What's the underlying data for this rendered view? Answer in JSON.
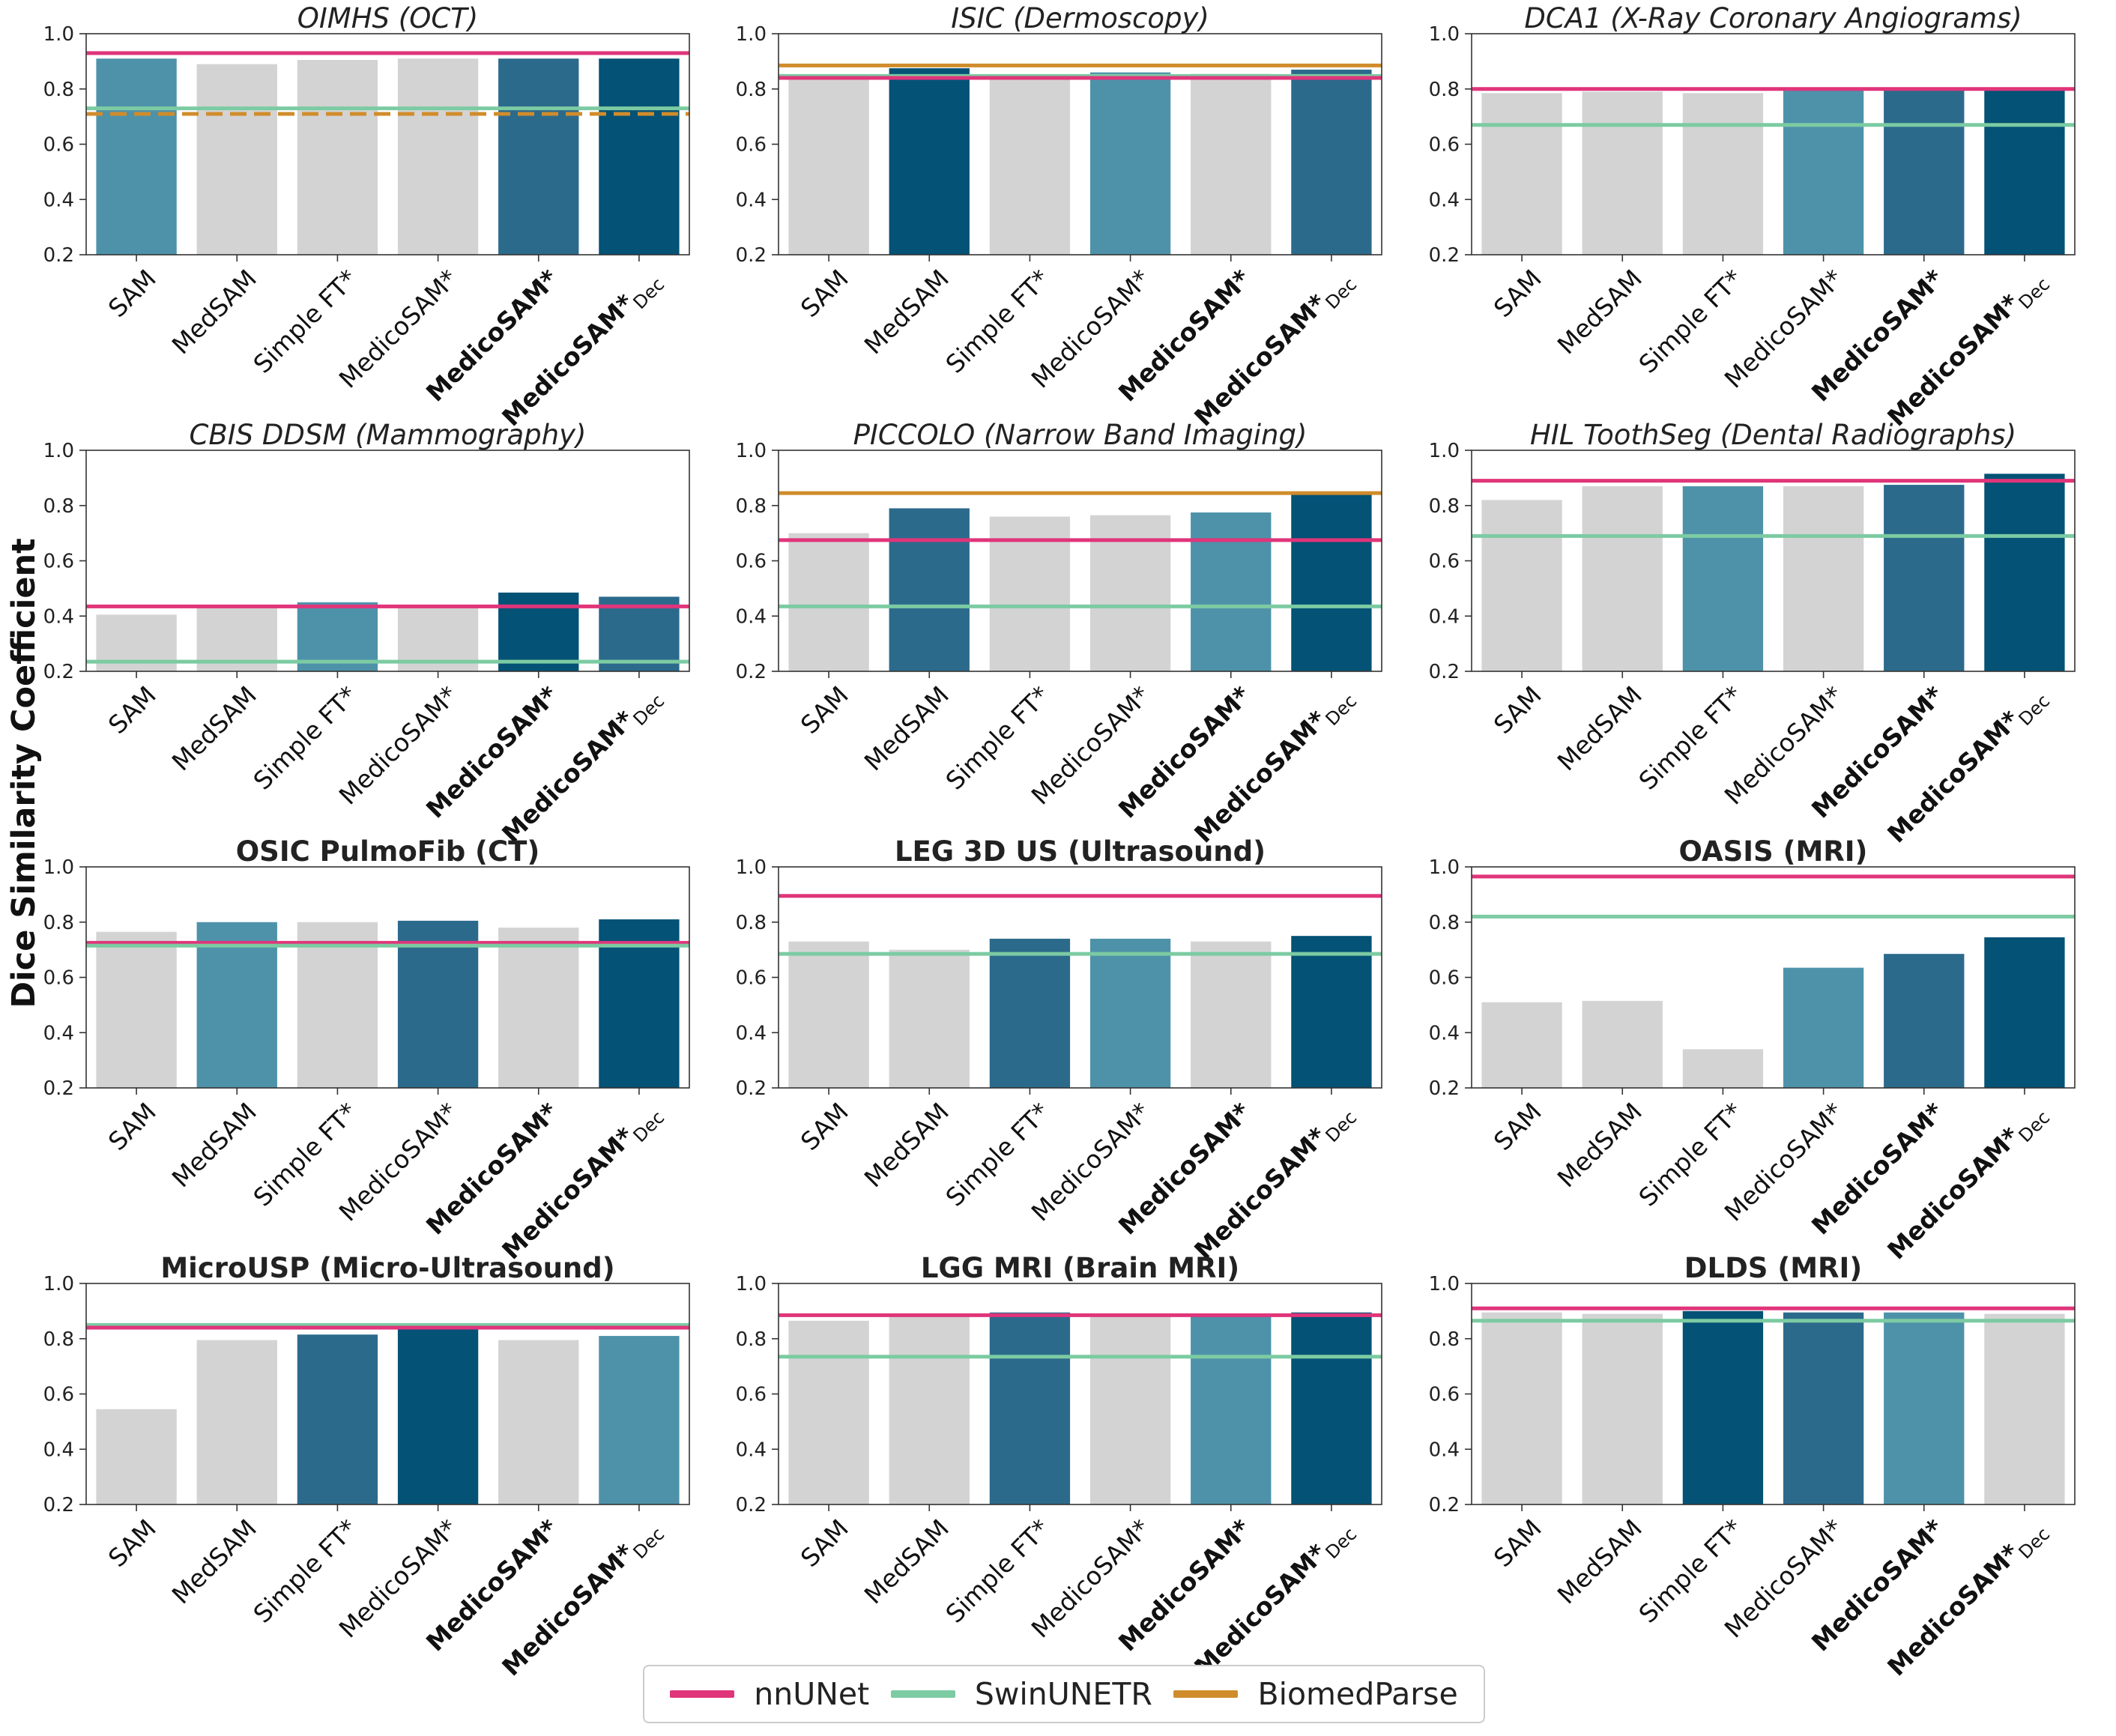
{
  "figure": {
    "ylabel": "Dice Similarity Coefficient",
    "categories": [
      "SAM",
      "MedSAM",
      "Simple FT*",
      "MedicoSAM*",
      "MedicoSAM*",
      "MedicoSAM*"
    ],
    "subscripts": [
      "",
      "",
      "",
      "",
      "",
      "Dec"
    ],
    "bold_categories": [
      false,
      false,
      false,
      false,
      true,
      true
    ],
    "colors": {
      "grey": "#d3d3d3",
      "light": "#4e92aa",
      "mid": "#2c6a8c",
      "dark": "#045275",
      "nnUNet": "#e0357a",
      "SwinUNETR": "#7ccba2",
      "BiomedParse": "#d08c2b"
    }
  },
  "legend": [
    {
      "label": "nnUNet",
      "color": "#e0357a"
    },
    {
      "label": "SwinUNETR",
      "color": "#7ccba2"
    },
    {
      "label": "BiomedParse",
      "color": "#d08c2b"
    }
  ],
  "chart_data": [
    {
      "type": "bar",
      "title": "OIMHS (OCT)",
      "title_style": "italic",
      "categories": [
        "SAM",
        "MedSAM",
        "Simple FT*",
        "MedicoSAM*",
        "MedicoSAM*",
        "MedicoSAM*Dec"
      ],
      "values": [
        0.91,
        0.89,
        0.905,
        0.91,
        0.91,
        0.91
      ],
      "bar_colors": [
        "light",
        "grey",
        "grey",
        "grey",
        "mid",
        "dark"
      ],
      "ylim": [
        0.2,
        1.0
      ],
      "yticks": [
        "0.2",
        "0.4",
        "0.6",
        "0.8",
        "1.0"
      ],
      "reference_lines": [
        {
          "model": "nnUNet",
          "value": 0.93
        },
        {
          "model": "SwinUNETR",
          "value": 0.73
        },
        {
          "model": "BiomedParse",
          "value": 0.71,
          "dashed": true
        }
      ]
    },
    {
      "type": "bar",
      "title": "ISIC (Dermoscopy)",
      "title_style": "italic",
      "categories": [
        "SAM",
        "MedSAM",
        "Simple FT*",
        "MedicoSAM*",
        "MedicoSAM*",
        "MedicoSAM*Dec"
      ],
      "values": [
        0.84,
        0.875,
        0.845,
        0.86,
        0.855,
        0.87
      ],
      "bar_colors": [
        "grey",
        "dark",
        "grey",
        "light",
        "grey",
        "mid"
      ],
      "ylim": [
        0.2,
        1.0
      ],
      "yticks": [
        "0.2",
        "0.4",
        "0.6",
        "0.8",
        "1.0"
      ],
      "reference_lines": [
        {
          "model": "BiomedParse",
          "value": 0.885
        },
        {
          "model": "SwinUNETR",
          "value": 0.847
        },
        {
          "model": "nnUNet",
          "value": 0.84
        }
      ]
    },
    {
      "type": "bar",
      "title": "DCA1 (X-Ray Coronary Angiograms)",
      "title_style": "italic",
      "categories": [
        "SAM",
        "MedSAM",
        "Simple FT*",
        "MedicoSAM*",
        "MedicoSAM*",
        "MedicoSAM*Dec"
      ],
      "values": [
        0.785,
        0.79,
        0.785,
        0.8,
        0.8,
        0.8
      ],
      "bar_colors": [
        "grey",
        "grey",
        "grey",
        "light",
        "mid",
        "dark"
      ],
      "ylim": [
        0.2,
        1.0
      ],
      "yticks": [
        "0.2",
        "0.4",
        "0.6",
        "0.8",
        "1.0"
      ],
      "reference_lines": [
        {
          "model": "nnUNet",
          "value": 0.8
        },
        {
          "model": "SwinUNETR",
          "value": 0.67
        }
      ]
    },
    {
      "type": "bar",
      "title": "CBIS DDSM (Mammography)",
      "title_style": "italic",
      "categories": [
        "SAM",
        "MedSAM",
        "Simple FT*",
        "MedicoSAM*",
        "MedicoSAM*",
        "MedicoSAM*Dec"
      ],
      "values": [
        0.405,
        0.44,
        0.45,
        0.44,
        0.485,
        0.47
      ],
      "bar_colors": [
        "grey",
        "grey",
        "light",
        "grey",
        "dark",
        "mid"
      ],
      "ylim": [
        0.2,
        1.0
      ],
      "yticks": [
        "0.2",
        "0.4",
        "0.6",
        "0.8",
        "1.0"
      ],
      "reference_lines": [
        {
          "model": "nnUNet",
          "value": 0.435
        },
        {
          "model": "SwinUNETR",
          "value": 0.235
        }
      ]
    },
    {
      "type": "bar",
      "title": "PICCOLO (Narrow Band Imaging)",
      "title_style": "italic",
      "categories": [
        "SAM",
        "MedSAM",
        "Simple FT*",
        "MedicoSAM*",
        "MedicoSAM*",
        "MedicoSAM*Dec"
      ],
      "values": [
        0.7,
        0.79,
        0.76,
        0.765,
        0.775,
        0.84
      ],
      "bar_colors": [
        "grey",
        "mid",
        "grey",
        "grey",
        "light",
        "dark"
      ],
      "ylim": [
        0.2,
        1.0
      ],
      "yticks": [
        "0.2",
        "0.4",
        "0.6",
        "0.8",
        "1.0"
      ],
      "reference_lines": [
        {
          "model": "BiomedParse",
          "value": 0.845
        },
        {
          "model": "nnUNet",
          "value": 0.675
        },
        {
          "model": "SwinUNETR",
          "value": 0.435
        }
      ]
    },
    {
      "type": "bar",
      "title": "HIL ToothSeg (Dental Radiographs)",
      "title_style": "italic",
      "categories": [
        "SAM",
        "MedSAM",
        "Simple FT*",
        "MedicoSAM*",
        "MedicoSAM*",
        "MedicoSAM*Dec"
      ],
      "values": [
        0.82,
        0.87,
        0.87,
        0.87,
        0.875,
        0.915
      ],
      "bar_colors": [
        "grey",
        "grey",
        "light",
        "grey",
        "mid",
        "dark"
      ],
      "ylim": [
        0.2,
        1.0
      ],
      "yticks": [
        "0.2",
        "0.4",
        "0.6",
        "0.8",
        "1.0"
      ],
      "reference_lines": [
        {
          "model": "nnUNet",
          "value": 0.89
        },
        {
          "model": "SwinUNETR",
          "value": 0.69
        }
      ]
    },
    {
      "type": "bar",
      "title": "OSIC PulmoFib (CT)",
      "title_style": "bold",
      "categories": [
        "SAM",
        "MedSAM",
        "Simple FT*",
        "MedicoSAM*",
        "MedicoSAM*",
        "MedicoSAM*Dec"
      ],
      "values": [
        0.765,
        0.8,
        0.8,
        0.805,
        0.78,
        0.81
      ],
      "bar_colors": [
        "grey",
        "light",
        "grey",
        "mid",
        "grey",
        "dark"
      ],
      "ylim": [
        0.2,
        1.0
      ],
      "yticks": [
        "0.2",
        "0.4",
        "0.6",
        "0.8",
        "1.0"
      ],
      "reference_lines": [
        {
          "model": "nnUNet",
          "value": 0.725
        },
        {
          "model": "SwinUNETR",
          "value": 0.715
        }
      ]
    },
    {
      "type": "bar",
      "title": "LEG 3D US (Ultrasound)",
      "title_style": "bold",
      "categories": [
        "SAM",
        "MedSAM",
        "Simple FT*",
        "MedicoSAM*",
        "MedicoSAM*",
        "MedicoSAM*Dec"
      ],
      "values": [
        0.73,
        0.7,
        0.74,
        0.74,
        0.73,
        0.75
      ],
      "bar_colors": [
        "grey",
        "grey",
        "mid",
        "light",
        "grey",
        "dark"
      ],
      "ylim": [
        0.2,
        1.0
      ],
      "yticks": [
        "0.2",
        "0.4",
        "0.6",
        "0.8",
        "1.0"
      ],
      "reference_lines": [
        {
          "model": "nnUNet",
          "value": 0.895
        },
        {
          "model": "SwinUNETR",
          "value": 0.685
        }
      ]
    },
    {
      "type": "bar",
      "title": "OASIS (MRI)",
      "title_style": "bold",
      "categories": [
        "SAM",
        "MedSAM",
        "Simple FT*",
        "MedicoSAM*",
        "MedicoSAM*",
        "MedicoSAM*Dec"
      ],
      "values": [
        0.51,
        0.515,
        0.34,
        0.635,
        0.685,
        0.745
      ],
      "bar_colors": [
        "grey",
        "grey",
        "grey",
        "light",
        "mid",
        "dark"
      ],
      "ylim": [
        0.2,
        1.0
      ],
      "yticks": [
        "0.2",
        "0.4",
        "0.6",
        "0.8",
        "1.0"
      ],
      "reference_lines": [
        {
          "model": "nnUNet",
          "value": 0.965
        },
        {
          "model": "SwinUNETR",
          "value": 0.82
        }
      ]
    },
    {
      "type": "bar",
      "title": "MicroUSP (Micro-Ultrasound)",
      "title_style": "bold",
      "categories": [
        "SAM",
        "MedSAM",
        "Simple FT*",
        "MedicoSAM*",
        "MedicoSAM*",
        "MedicoSAM*Dec"
      ],
      "values": [
        0.545,
        0.795,
        0.815,
        0.84,
        0.795,
        0.81
      ],
      "bar_colors": [
        "grey",
        "grey",
        "mid",
        "dark",
        "grey",
        "light"
      ],
      "ylim": [
        0.2,
        1.0
      ],
      "yticks": [
        "0.2",
        "0.4",
        "0.6",
        "0.8",
        "1.0"
      ],
      "reference_lines": [
        {
          "model": "SwinUNETR",
          "value": 0.85
        },
        {
          "model": "nnUNet",
          "value": 0.84
        }
      ]
    },
    {
      "type": "bar",
      "title": "LGG MRI (Brain MRI)",
      "title_style": "bold",
      "categories": [
        "SAM",
        "MedSAM",
        "Simple FT*",
        "MedicoSAM*",
        "MedicoSAM*",
        "MedicoSAM*Dec"
      ],
      "values": [
        0.865,
        0.885,
        0.895,
        0.885,
        0.89,
        0.895
      ],
      "bar_colors": [
        "grey",
        "grey",
        "mid",
        "grey",
        "light",
        "dark"
      ],
      "ylim": [
        0.2,
        1.0
      ],
      "yticks": [
        "0.2",
        "0.4",
        "0.6",
        "0.8",
        "1.0"
      ],
      "reference_lines": [
        {
          "model": "nnUNet",
          "value": 0.885
        },
        {
          "model": "SwinUNETR",
          "value": 0.735
        }
      ]
    },
    {
      "type": "bar",
      "title": "DLDS (MRI)",
      "title_style": "bold",
      "categories": [
        "SAM",
        "MedSAM",
        "Simple FT*",
        "MedicoSAM*",
        "MedicoSAM*",
        "MedicoSAM*Dec"
      ],
      "values": [
        0.895,
        0.89,
        0.9,
        0.895,
        0.895,
        0.89
      ],
      "bar_colors": [
        "grey",
        "grey",
        "dark",
        "mid",
        "light",
        "grey"
      ],
      "ylim": [
        0.2,
        1.0
      ],
      "yticks": [
        "0.2",
        "0.4",
        "0.6",
        "0.8",
        "1.0"
      ],
      "reference_lines": [
        {
          "model": "nnUNet",
          "value": 0.91
        },
        {
          "model": "SwinUNETR",
          "value": 0.865
        }
      ]
    }
  ]
}
